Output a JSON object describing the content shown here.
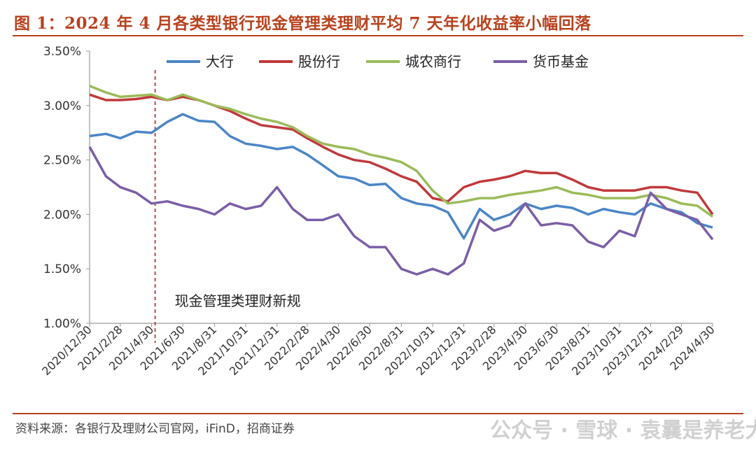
{
  "figure_title": "图 1：2024 年 4 月各类型银行现金管理类理财平均 7 天年化收益率小幅回落",
  "source_note": "资料来源：各银行及理财公司官网，iFinD，招商证券",
  "watermark": "公众号 · 雪球 · 袁曩是养老大户",
  "colors": {
    "accent": "#b8421e",
    "big_bank": "#4a86c6",
    "joint_stock": "#c0393b",
    "rural_city": "#9bbb59",
    "money_fund": "#7b5ea7",
    "vline": "#b03a3a"
  },
  "chart_data": {
    "type": "line",
    "xlabel": "",
    "ylabel": "",
    "ylim": [
      1.0,
      3.5
    ],
    "yticks": [
      "3.50%",
      "3.00%",
      "2.50%",
      "2.00%",
      "1.50%",
      "1.00%"
    ],
    "xlim": [
      "2020-12-30",
      "2024-04-30"
    ],
    "xticks": [
      "2020/12/30",
      "2021/2/28",
      "2021/4/30",
      "2021/6/30",
      "2021/8/31",
      "2021/10/31",
      "2021/12/31",
      "2022/2/28",
      "2022/4/30",
      "2022/6/30",
      "2022/8/31",
      "2022/10/31",
      "2022/12/31",
      "2023/2/28",
      "2023/4/30",
      "2023/6/30",
      "2023/8/31",
      "2023/10/31",
      "2023/12/31",
      "2024/2/29",
      "2024/4/30"
    ],
    "grid": false,
    "legend_position": "top",
    "annotation": {
      "text": "现金管理类理财新规",
      "x": "2021-05-07"
    },
    "x": [
      "2020-12-30",
      "2021-01-31",
      "2021-02-28",
      "2021-03-31",
      "2021-04-30",
      "2021-05-31",
      "2021-06-30",
      "2021-07-31",
      "2021-08-31",
      "2021-09-30",
      "2021-10-31",
      "2021-11-30",
      "2021-12-31",
      "2022-01-31",
      "2022-02-28",
      "2022-03-31",
      "2022-04-30",
      "2022-05-31",
      "2022-06-30",
      "2022-07-31",
      "2022-08-31",
      "2022-09-30",
      "2022-10-31",
      "2022-11-30",
      "2022-12-31",
      "2023-01-31",
      "2023-02-28",
      "2023-03-31",
      "2023-04-30",
      "2023-05-31",
      "2023-06-30",
      "2023-07-31",
      "2023-08-31",
      "2023-09-30",
      "2023-10-31",
      "2023-11-30",
      "2023-12-31",
      "2024-01-31",
      "2024-02-29",
      "2024-03-31",
      "2024-04-30"
    ],
    "series": [
      {
        "name": "大行",
        "color": "#4a86c6",
        "values": [
          2.72,
          2.74,
          2.7,
          2.76,
          2.75,
          2.85,
          2.92,
          2.86,
          2.85,
          2.72,
          2.65,
          2.63,
          2.6,
          2.62,
          2.55,
          2.45,
          2.35,
          2.33,
          2.27,
          2.28,
          2.15,
          2.1,
          2.08,
          2.02,
          1.78,
          2.05,
          1.95,
          2.0,
          2.1,
          2.05,
          2.08,
          2.06,
          2.0,
          2.05,
          2.02,
          2.0,
          2.1,
          2.05,
          2.02,
          1.92,
          1.88
        ]
      },
      {
        "name": "股份行",
        "color": "#c0393b",
        "values": [
          3.1,
          3.05,
          3.05,
          3.06,
          3.08,
          3.05,
          3.08,
          3.05,
          3.0,
          2.95,
          2.88,
          2.82,
          2.8,
          2.78,
          2.7,
          2.62,
          2.55,
          2.5,
          2.48,
          2.42,
          2.35,
          2.3,
          2.15,
          2.12,
          2.25,
          2.3,
          2.32,
          2.35,
          2.4,
          2.38,
          2.38,
          2.32,
          2.25,
          2.22,
          2.22,
          2.22,
          2.25,
          2.25,
          2.22,
          2.2,
          2.0
        ]
      },
      {
        "name": "城农商行",
        "color": "#9bbb59",
        "values": [
          3.18,
          3.12,
          3.08,
          3.09,
          3.1,
          3.05,
          3.1,
          3.05,
          3.0,
          2.97,
          2.92,
          2.88,
          2.85,
          2.8,
          2.72,
          2.65,
          2.62,
          2.6,
          2.55,
          2.52,
          2.48,
          2.4,
          2.22,
          2.1,
          2.12,
          2.15,
          2.15,
          2.18,
          2.2,
          2.22,
          2.25,
          2.2,
          2.18,
          2.15,
          2.15,
          2.15,
          2.18,
          2.15,
          2.1,
          2.08,
          1.98
        ]
      },
      {
        "name": "货币基金",
        "color": "#7b5ea7",
        "values": [
          2.62,
          2.35,
          2.25,
          2.2,
          2.1,
          2.12,
          2.08,
          2.05,
          2.0,
          2.1,
          2.05,
          2.08,
          2.25,
          2.05,
          1.95,
          1.95,
          2.0,
          1.8,
          1.7,
          1.7,
          1.5,
          1.45,
          1.5,
          1.45,
          1.55,
          1.95,
          1.85,
          1.9,
          2.1,
          1.9,
          1.92,
          1.9,
          1.75,
          1.7,
          1.85,
          1.8,
          2.2,
          2.05,
          2.0,
          1.95,
          1.77
        ]
      }
    ]
  }
}
